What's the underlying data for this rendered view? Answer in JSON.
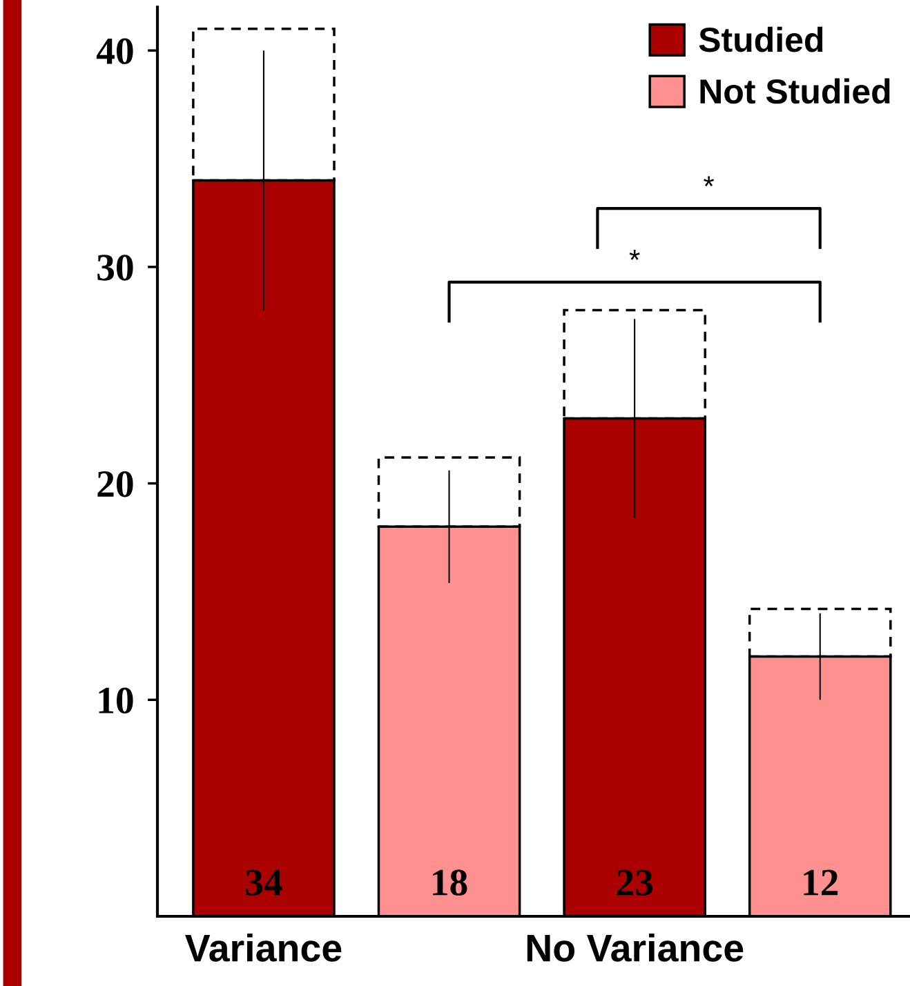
{
  "chart_data": {
    "type": "bar",
    "categories": [
      "Variance",
      null,
      "No Variance",
      null
    ],
    "series": [
      {
        "name": "Studied",
        "color": "#aa0000",
        "values": [
          34,
          null,
          23,
          null
        ],
        "errors": [
          6,
          null,
          4.6,
          null
        ],
        "value_labels": [
          "34",
          null,
          "23",
          null
        ]
      },
      {
        "name": "Not Studied",
        "color": "#ff9090",
        "values": [
          null,
          18,
          null,
          12
        ],
        "errors": [
          null,
          2.6,
          null,
          2
        ],
        "value_labels": [
          null,
          "18",
          null,
          "12"
        ]
      },
      {
        "color": "#ffffff",
        "values": [
          7,
          3.2,
          5,
          2.2
        ],
        "line_style": "dashed"
      }
    ],
    "stacked": true,
    "ylim": [
      0,
      42
    ],
    "yticks": [
      10,
      20,
      30,
      40
    ],
    "grid": false,
    "legend": "top right",
    "annotations": [
      "*",
      "*"
    ]
  }
}
